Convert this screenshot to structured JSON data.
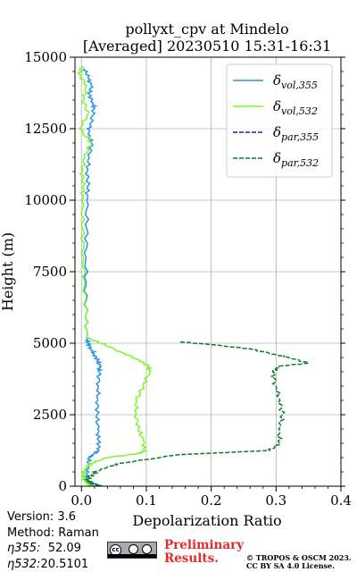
{
  "chart_data": {
    "type": "line",
    "title_line1": "pollyxt_cpv at Mindelo",
    "title_line2": "[Averaged] 20230510 15:31-16:31",
    "xlabel": "Depolarization Ratio",
    "ylabel": "Height (m)",
    "xlim": [
      -0.01,
      0.4
    ],
    "ylim": [
      0,
      15000
    ],
    "xticks": [
      0.0,
      0.1,
      0.2,
      0.3,
      0.4
    ],
    "xtick_labels": [
      "0.0",
      "0.1",
      "0.2",
      "0.3",
      "0.4"
    ],
    "yticks": [
      0,
      2500,
      5000,
      7500,
      10000,
      12500,
      15000
    ],
    "ytick_labels": [
      "0",
      "2500",
      "5000",
      "7500",
      "10000",
      "12500",
      "15000"
    ],
    "grid": true,
    "legend_position": "top-right",
    "series": [
      {
        "name": "vol,355",
        "symbol": "δ",
        "color": "#2b94e6",
        "style": "solid",
        "points": [
          [
            0.03,
            0
          ],
          [
            0.02,
            100
          ],
          [
            0.01,
            200
          ],
          [
            0.008,
            400
          ],
          [
            0.01,
            700
          ],
          [
            0.012,
            1000
          ],
          [
            0.018,
            1100
          ],
          [
            0.027,
            1250
          ],
          [
            0.026,
            1600
          ],
          [
            0.025,
            2000
          ],
          [
            0.024,
            2500
          ],
          [
            0.025,
            3000
          ],
          [
            0.026,
            3500
          ],
          [
            0.027,
            4000
          ],
          [
            0.028,
            4200
          ],
          [
            0.025,
            4400
          ],
          [
            0.02,
            4600
          ],
          [
            0.015,
            4800
          ],
          [
            0.01,
            5000
          ],
          [
            0.008,
            5200
          ],
          [
            0.007,
            6000
          ],
          [
            0.007,
            7000
          ],
          [
            0.007,
            8000
          ],
          [
            0.008,
            9000
          ],
          [
            0.008,
            10000
          ],
          [
            0.01,
            10500
          ],
          [
            0.009,
            11000
          ],
          [
            0.012,
            11500
          ],
          [
            0.016,
            12000
          ],
          [
            0.01,
            12300
          ],
          [
            0.014,
            12700
          ],
          [
            0.02,
            13200
          ],
          [
            0.018,
            13400
          ],
          [
            0.012,
            13700
          ],
          [
            0.015,
            14000
          ],
          [
            0.01,
            14300
          ],
          [
            0.005,
            14600
          ]
        ]
      },
      {
        "name": "vol,532",
        "symbol": "δ",
        "color": "#7ff52b",
        "style": "solid",
        "points": [
          [
            0.015,
            0
          ],
          [
            0.01,
            100
          ],
          [
            0.005,
            200
          ],
          [
            0.002,
            400
          ],
          [
            0.005,
            600
          ],
          [
            0.015,
            800
          ],
          [
            0.04,
            1000
          ],
          [
            0.09,
            1150
          ],
          [
            0.097,
            1250
          ],
          [
            0.095,
            1600
          ],
          [
            0.088,
            2000
          ],
          [
            0.084,
            2500
          ],
          [
            0.085,
            3000
          ],
          [
            0.095,
            3500
          ],
          [
            0.105,
            4000
          ],
          [
            0.103,
            4200
          ],
          [
            0.09,
            4400
          ],
          [
            0.06,
            4700
          ],
          [
            0.03,
            5000
          ],
          [
            0.008,
            5200
          ],
          [
            0.007,
            6000
          ],
          [
            0.005,
            7000
          ],
          [
            0.003,
            8000
          ],
          [
            0.002,
            9000
          ],
          [
            0.001,
            10000
          ],
          [
            0.003,
            10500
          ],
          [
            0.001,
            11000
          ],
          [
            0.005,
            11500
          ],
          [
            0.015,
            12000
          ],
          [
            -0.003,
            12500
          ],
          [
            0.01,
            13000
          ],
          [
            0.003,
            13500
          ],
          [
            0.008,
            14000
          ],
          [
            -0.003,
            14400
          ],
          [
            0.0,
            14700
          ]
        ]
      },
      {
        "name": "par,355",
        "symbol": "δ",
        "color": "#1a1ac8",
        "style": "dashed",
        "points": []
      },
      {
        "name": "par,532",
        "symbol": "δ",
        "color": "#0a7a2f",
        "style": "dashed",
        "points": [
          [
            0.03,
            0
          ],
          [
            0.015,
            100
          ],
          [
            0.01,
            200
          ],
          [
            0.015,
            400
          ],
          [
            0.03,
            600
          ],
          [
            0.06,
            800
          ],
          [
            0.15,
            1100
          ],
          [
            0.29,
            1250
          ],
          [
            0.305,
            1500
          ],
          [
            0.304,
            2000
          ],
          [
            0.31,
            2500
          ],
          [
            0.306,
            3000
          ],
          [
            0.3,
            3500
          ],
          [
            0.295,
            4000
          ],
          [
            0.305,
            4200
          ],
          [
            0.35,
            4300
          ],
          [
            0.32,
            4500
          ],
          [
            0.3,
            4600
          ],
          [
            0.26,
            4800
          ],
          [
            0.2,
            4950
          ],
          [
            0.15,
            5050
          ]
        ]
      }
    ]
  },
  "info": {
    "version": "Version: 3.6",
    "method": "Method: Raman",
    "eta355_label": "η355:",
    "eta355_value": "52.09",
    "eta532_label": "η532:",
    "eta532_value": "20.5101"
  },
  "footer": {
    "cc_badge_text": "cc",
    "preliminary_line1": "Preliminary",
    "preliminary_line2": "Results.",
    "credit_line1": "© TROPOS & OSCM 2023.",
    "credit_line2": "CC BY SA 4.0 License."
  }
}
